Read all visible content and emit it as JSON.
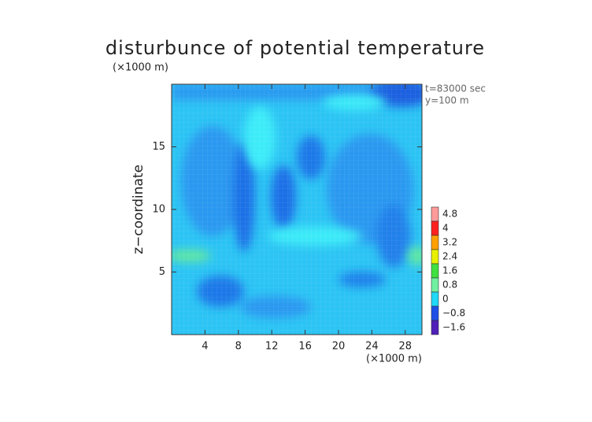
{
  "chart_data": {
    "type": "contour",
    "title": "disturbunce of potential temperature",
    "y_unit_label": "(×1000 m)",
    "x_unit_label": "(×1000 m)",
    "ylabel": "z−coordinate",
    "annotations": [
      "t=83000 sec",
      "y=100 m"
    ],
    "xlim": [
      0,
      30
    ],
    "ylim": [
      0,
      20
    ],
    "xticks": [
      4,
      8,
      12,
      16,
      20,
      24,
      28
    ],
    "yticks": [
      5,
      10,
      15
    ],
    "colorbar": {
      "ticks": [
        {
          "value": 4.8,
          "label": "4.8"
        },
        4,
        {
          "value": 3.2,
          "label": "3.2"
        },
        {
          "value": 2.4,
          "label": "2.4"
        },
        {
          "value": 1.6,
          "label": "1.6"
        },
        {
          "value": 0.8,
          "label": "0.8"
        },
        0,
        {
          "value": -0.8,
          "label": "−0.8"
        },
        {
          "value": -1.6,
          "label": "−1.6"
        }
      ],
      "colors": [
        "#ff9a9a",
        "#ff2020",
        "#ffa000",
        "#e8f000",
        "#40e040",
        "#70f0a0",
        "#20d8f8",
        "#1e50e8",
        "#5020b8"
      ]
    }
  }
}
